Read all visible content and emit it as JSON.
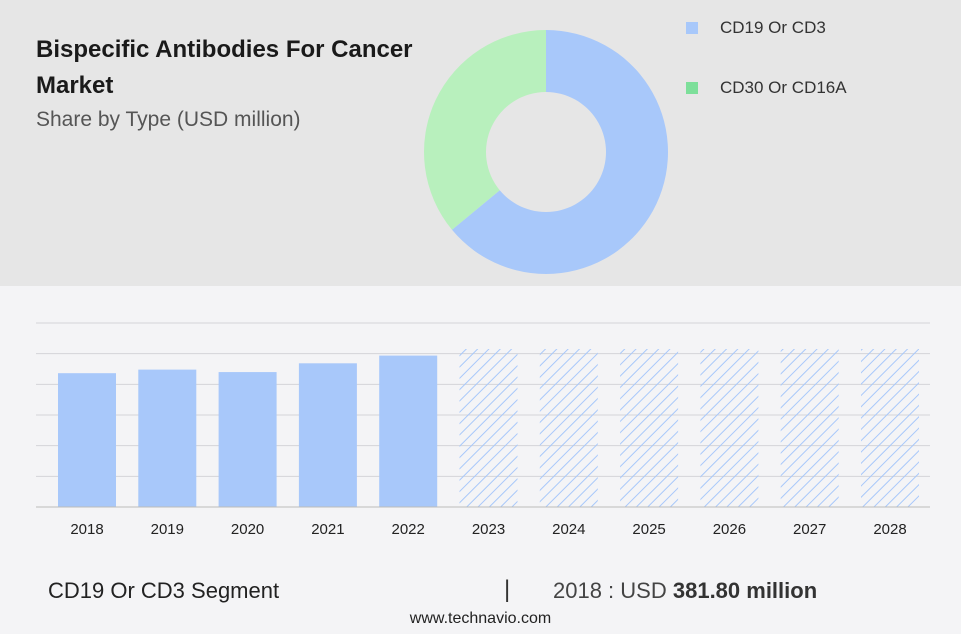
{
  "title": "Bispecific Antibodies For Cancer Market",
  "subtitle": "Share by Type (USD million)",
  "colors": {
    "cd19": "#a8c8fa",
    "cd30": "#b8f0bd",
    "cd30_legend": "#7ddf9a",
    "hatch": "#a8c8fa"
  },
  "chart_data": [
    {
      "type": "pie",
      "variant": "donut",
      "series": [
        {
          "name": "CD19 Or CD3",
          "value": 64
        },
        {
          "name": "CD30 Or CD16A",
          "value": 36
        }
      ],
      "legend_position": "top-right"
    },
    {
      "type": "bar",
      "categories": [
        "2018",
        "2019",
        "2020",
        "2021",
        "2022",
        "2023",
        "2024",
        "2025",
        "2026",
        "2027",
        "2028"
      ],
      "values": [
        381.8,
        392,
        385,
        410,
        432,
        null,
        null,
        null,
        null,
        null,
        null
      ],
      "forecast_categories": [
        "2023",
        "2024",
        "2025",
        "2026",
        "2027",
        "2028"
      ],
      "ylim": [
        0,
        525
      ],
      "grid": true
    }
  ],
  "footer": {
    "segment": "CD19 Or CD3 Segment",
    "separator": "|",
    "year_label": "2018 : USD",
    "value": "381.80 million"
  },
  "watermark": "www.technavio.com"
}
